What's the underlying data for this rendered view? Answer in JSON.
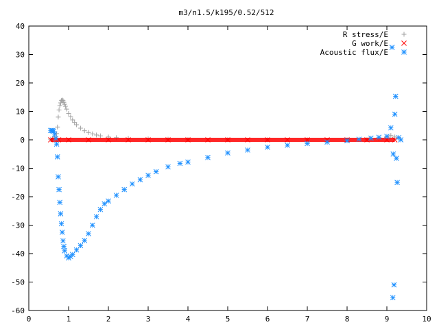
{
  "chart_data": {
    "type": "scatter",
    "title": "m3/n1.5/k195/0.52/512",
    "xlabel": "",
    "ylabel": "",
    "xlim": [
      0,
      10
    ],
    "ylim": [
      -60,
      40
    ],
    "xticks": [
      "0",
      "1",
      "2",
      "3",
      "4",
      "5",
      "6",
      "7",
      "8",
      "9",
      "10"
    ],
    "yticks": [
      "40",
      "30",
      "20",
      "10",
      "0",
      "-10",
      "-20",
      "-30",
      "-40",
      "-50",
      "-60"
    ],
    "grid": false,
    "legend_position": "top-right",
    "series": [
      {
        "name": "R stress/E",
        "marker": "plus",
        "color": "#a0a0a0",
        "points": [
          [
            0.55,
            0.2
          ],
          [
            0.6,
            0.4
          ],
          [
            0.65,
            1.0
          ],
          [
            0.7,
            2.2
          ],
          [
            0.72,
            4.5
          ],
          [
            0.74,
            8.0
          ],
          [
            0.76,
            10.5
          ],
          [
            0.78,
            12.0
          ],
          [
            0.8,
            13.0
          ],
          [
            0.82,
            13.8
          ],
          [
            0.84,
            14.0
          ],
          [
            0.86,
            13.8
          ],
          [
            0.88,
            13.2
          ],
          [
            0.9,
            12.5
          ],
          [
            0.92,
            11.8
          ],
          [
            0.95,
            10.8
          ],
          [
            1.0,
            9.3
          ],
          [
            1.05,
            8.1
          ],
          [
            1.1,
            7.0
          ],
          [
            1.15,
            6.1
          ],
          [
            1.2,
            5.3
          ],
          [
            1.3,
            4.1
          ],
          [
            1.4,
            3.2
          ],
          [
            1.5,
            2.6
          ],
          [
            1.6,
            2.1
          ],
          [
            1.7,
            1.7
          ],
          [
            1.8,
            1.4
          ],
          [
            2.0,
            1.0
          ],
          [
            2.2,
            0.75
          ],
          [
            2.5,
            0.5
          ],
          [
            3.0,
            0.3
          ],
          [
            3.5,
            0.2
          ],
          [
            4.0,
            0.1
          ],
          [
            5.0,
            0.05
          ],
          [
            6.0,
            0.0
          ],
          [
            7.0,
            0.0
          ],
          [
            8.0,
            0.0
          ],
          [
            8.5,
            0.1
          ],
          [
            8.8,
            0.3
          ],
          [
            9.0,
            1.0
          ],
          [
            9.1,
            1.5
          ],
          [
            9.2,
            1.0
          ],
          [
            9.3,
            0.5
          ]
        ]
      },
      {
        "name": "G work/E",
        "marker": "cross",
        "color": "#ff0000",
        "points": [
          [
            0.55,
            0.0
          ],
          [
            0.75,
            0.0
          ],
          [
            1.0,
            0.0
          ],
          [
            1.5,
            0.0
          ],
          [
            2.0,
            0.0
          ],
          [
            2.5,
            0.0
          ],
          [
            3.0,
            0.0
          ],
          [
            3.5,
            0.0
          ],
          [
            4.0,
            0.0
          ],
          [
            4.5,
            0.0
          ],
          [
            5.0,
            0.0
          ],
          [
            5.5,
            0.0
          ],
          [
            6.0,
            0.0
          ],
          [
            6.5,
            0.0
          ],
          [
            7.0,
            0.0
          ],
          [
            7.5,
            0.0
          ],
          [
            8.0,
            0.0
          ],
          [
            8.5,
            0.0
          ],
          [
            9.0,
            0.0
          ],
          [
            9.2,
            0.0
          ]
        ]
      },
      {
        "name": "Acoustic flux/E",
        "marker": "star",
        "color": "#1e90ff",
        "points": [
          [
            0.55,
            3.3
          ],
          [
            0.58,
            3.3
          ],
          [
            0.6,
            3.2
          ],
          [
            0.62,
            3.0
          ],
          [
            0.65,
            2.0
          ],
          [
            0.68,
            0.5
          ],
          [
            0.7,
            -1.5
          ],
          [
            0.72,
            -6.0
          ],
          [
            0.74,
            -13.0
          ],
          [
            0.76,
            -17.5
          ],
          [
            0.78,
            -22.0
          ],
          [
            0.8,
            -26.0
          ],
          [
            0.82,
            -29.5
          ],
          [
            0.84,
            -32.5
          ],
          [
            0.86,
            -35.5
          ],
          [
            0.88,
            -37.5
          ],
          [
            0.9,
            -39.0
          ],
          [
            0.95,
            -40.8
          ],
          [
            1.0,
            -41.5
          ],
          [
            1.05,
            -41.0
          ],
          [
            1.1,
            -40.3
          ],
          [
            1.2,
            -38.7
          ],
          [
            1.3,
            -37.2
          ],
          [
            1.4,
            -35.4
          ],
          [
            1.5,
            -33.0
          ],
          [
            1.6,
            -30.0
          ],
          [
            1.7,
            -27.0
          ],
          [
            1.8,
            -24.5
          ],
          [
            1.9,
            -22.5
          ],
          [
            2.0,
            -21.5
          ],
          [
            2.2,
            -19.5
          ],
          [
            2.4,
            -17.5
          ],
          [
            2.6,
            -15.5
          ],
          [
            2.8,
            -14.0
          ],
          [
            3.0,
            -12.5
          ],
          [
            3.2,
            -11.2
          ],
          [
            3.5,
            -9.5
          ],
          [
            3.8,
            -8.3
          ],
          [
            4.0,
            -7.8
          ],
          [
            4.5,
            -6.2
          ],
          [
            5.0,
            -4.6
          ],
          [
            5.5,
            -3.6
          ],
          [
            6.0,
            -2.6
          ],
          [
            6.5,
            -1.9
          ],
          [
            7.0,
            -1.3
          ],
          [
            7.5,
            -0.8
          ],
          [
            8.0,
            -0.3
          ],
          [
            8.3,
            0.2
          ],
          [
            8.6,
            0.6
          ],
          [
            8.8,
            0.9
          ],
          [
            9.0,
            1.2
          ],
          [
            9.1,
            4.2
          ],
          [
            9.13,
            32.5
          ],
          [
            9.16,
            -5.0
          ],
          [
            9.2,
            9.0
          ],
          [
            9.22,
            15.3
          ],
          [
            9.24,
            -6.5
          ],
          [
            9.26,
            -15.0
          ],
          [
            9.18,
            -51.0
          ],
          [
            9.15,
            -55.5
          ],
          [
            9.3,
            0.8
          ],
          [
            9.35,
            0.0
          ]
        ]
      }
    ]
  }
}
